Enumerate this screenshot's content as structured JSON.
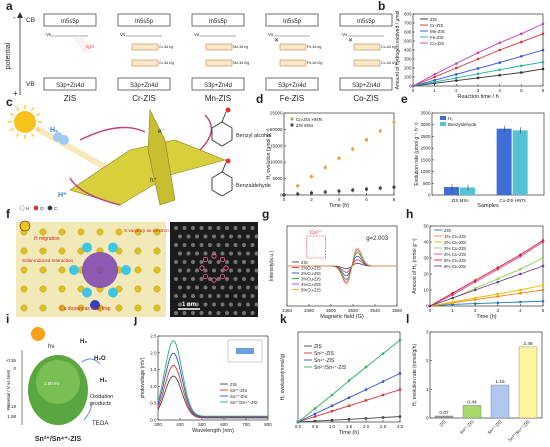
{
  "panel_letters": [
    "a",
    "b",
    "c",
    "d",
    "e",
    "f",
    "g",
    "h",
    "i",
    "j",
    "k",
    "l"
  ],
  "panel_a": {
    "potential_axis": "potential",
    "minus": "-",
    "plus": "+",
    "cb": "CB",
    "vb": "VB",
    "band_top": "In5s5p",
    "band_bottom": "S3p+Zn4d",
    "vs": "Vs",
    "light": "light",
    "samples": [
      "ZIS",
      "Cr-ZIS",
      "Mn-ZIS",
      "Fe-ZIS",
      "Co-ZIS"
    ],
    "dopant_levels": [
      {
        "eg": "",
        "t2g": ""
      },
      {
        "eg": "Cr-3d eg",
        "t2g": "Cr-3d t2g"
      },
      {
        "eg": "Mn-3d eg",
        "t2g": "Mn-3d t2g"
      },
      {
        "eg": "Fe-3d eg",
        "t2g": "Fe-3d t2g"
      },
      {
        "eg": "Co-3d eg",
        "t2g": "Co-3d t2g"
      }
    ]
  },
  "panel_c": {
    "h2": "H₂",
    "hplus": "H⁺",
    "electron": "e⁻",
    "hole": "h⁺",
    "benzyl_alcohol": "Benzyl alcohol",
    "benzaldehyde": "Benzaldehyde",
    "legend": [
      "H",
      "O",
      "C"
    ]
  },
  "panel_f": {
    "annotations": [
      "H migration",
      "S vacancy as electron trap",
      "Solar-induced Interaction",
      "Cu dopant as hole trap"
    ],
    "scale": "1 nm"
  },
  "panel_i": {
    "yaxis": "Potential / V vs NHE",
    "title": "Sn²⁺/Sn⁴⁺-ZIS",
    "h2": "H₂",
    "h2o": "H₂O",
    "h2o2": "H₂O",
    "h2_2": "H₂",
    "oxidation": "Oxidation products",
    "teoa": "TEOA",
    "hv": "hν",
    "levels": [
      "-0.36",
      "0",
      "2.19",
      "1.98"
    ],
    "ev": "1.90 eV"
  },
  "chart_data": [
    {
      "panel": "b",
      "type": "line",
      "xlabel": "Reaction time / h",
      "ylabel": "Amount of hydrogen evolved / μmol",
      "x": [
        0,
        1,
        2,
        3,
        4,
        5,
        6
      ],
      "xlim": [
        0,
        6
      ],
      "ylim": [
        0,
        800
      ],
      "yticks": [
        0,
        100,
        200,
        300,
        400,
        500,
        600,
        700,
        800
      ],
      "series": [
        {
          "name": "ZIS",
          "color": "#333333",
          "values": [
            0,
            30,
            60,
            90,
            120,
            150,
            190
          ]
        },
        {
          "name": "Cr-ZIS",
          "color": "#e03030",
          "values": [
            0,
            100,
            200,
            300,
            400,
            490,
            580
          ]
        },
        {
          "name": "Mn-ZIS",
          "color": "#3050e0",
          "values": [
            0,
            65,
            130,
            195,
            260,
            330,
            400
          ]
        },
        {
          "name": "Fe-ZIS",
          "color": "#20b0a0",
          "values": [
            0,
            45,
            90,
            135,
            180,
            225,
            265
          ]
        },
        {
          "name": "Co-ZIS",
          "color": "#c040c0",
          "values": [
            0,
            130,
            250,
            370,
            480,
            580,
            690
          ]
        }
      ]
    },
    {
      "panel": "d",
      "type": "scatter",
      "xlabel": "Time (h)",
      "ylabel": "H₂ evolution (μmol g⁻¹)",
      "xlim": [
        0,
        8
      ],
      "ylim": [
        0,
        25000
      ],
      "xticks": [
        0,
        2,
        4,
        6,
        8
      ],
      "yticks": [
        0,
        5000,
        10000,
        15000,
        20000,
        25000
      ],
      "series": [
        {
          "name": "Co-ZIS HNTs",
          "color": "#e6a23c",
          "x": [
            0,
            1,
            2,
            3,
            4,
            5,
            6,
            7,
            8
          ],
          "values": [
            0,
            2800,
            5600,
            8400,
            11200,
            14000,
            16800,
            19500,
            22200
          ]
        },
        {
          "name": "ZIS MSs",
          "color": "#444444",
          "x": [
            0,
            1,
            2,
            3,
            4,
            5,
            6,
            7,
            8
          ],
          "values": [
            0,
            300,
            600,
            900,
            1200,
            1500,
            1800,
            2100,
            2400
          ]
        }
      ]
    },
    {
      "panel": "e",
      "type": "bar",
      "xlabel": "Samples",
      "ylabel": "Evolution rate (μmol g⁻¹ h⁻¹)",
      "categories": [
        "ZIS MSs",
        "Co-ZIS HNTs"
      ],
      "ylim": [
        0,
        3500
      ],
      "yticks": [
        0,
        500,
        1000,
        1500,
        2000,
        2500,
        3000,
        3500
      ],
      "series": [
        {
          "name": "H₂",
          "color": "#3f6fd6",
          "values": [
            340,
            2830
          ]
        },
        {
          "name": "Benzyldehyde",
          "color": "#54c3d6",
          "values": [
            320,
            2760
          ]
        }
      ]
    },
    {
      "panel": "g",
      "type": "line",
      "xlabel": "Magnetic field (G)",
      "ylabel": "Intensity(a.u.)",
      "xlim": [
        3460,
        3560
      ],
      "xticks": [
        3460,
        3480,
        3500,
        3520,
        3540,
        3560
      ],
      "annotation_cu": "Cu²⁺",
      "annotation_g": "g=2.003",
      "series": [
        {
          "name": "ZIS",
          "color": "#444444",
          "amp": 0.15
        },
        {
          "name": "1%Cu-ZIS",
          "color": "#e03030",
          "amp": 0.35
        },
        {
          "name": "2%Cu-ZIS",
          "color": "#3050e0",
          "amp": 0.55
        },
        {
          "name": "3%Cu-ZIS",
          "color": "#30a030",
          "amp": 0.75
        },
        {
          "name": "4%Cu-ZIS",
          "color": "#c040c0",
          "amp": 0.9
        },
        {
          "name": "5%Cu-ZIS",
          "color": "#e6a23c",
          "amp": 1.0
        }
      ]
    },
    {
      "panel": "h",
      "type": "line",
      "xlabel": "Time (h)",
      "ylabel": "Amount of H₂ (mmol g⁻¹)",
      "x": [
        0,
        1,
        2,
        3,
        4,
        5
      ],
      "xlim": [
        0,
        5
      ],
      "ylim": [
        0,
        50
      ],
      "yticks": [
        0,
        10,
        20,
        30,
        40,
        50
      ],
      "series": [
        {
          "name": "ZIS",
          "color": "#1f77b4",
          "values": [
            0,
            1,
            1.5,
            2,
            2.5,
            3
          ]
        },
        {
          "name": "1% Cu-ZIS",
          "color": "#ff7f0e",
          "values": [
            0,
            2,
            4,
            6,
            8,
            10
          ]
        },
        {
          "name": "2% Cu-ZIS",
          "color": "#e6c000",
          "values": [
            0,
            2.5,
            5,
            7.5,
            10,
            13
          ]
        },
        {
          "name": "3% Cu-ZIS",
          "color": "#8fd14f",
          "values": [
            0,
            5,
            11,
            17,
            23,
            30
          ]
        },
        {
          "name": "4% Cu-ZIS",
          "color": "#e040a0",
          "values": [
            0,
            7,
            15,
            23,
            31,
            40
          ]
        },
        {
          "name": "5% Cu-ZIS",
          "color": "#d62728",
          "values": [
            0,
            8,
            16,
            24,
            32,
            41
          ]
        },
        {
          "name": "6% Cu-ZIS",
          "color": "#6a3d9a",
          "values": [
            0,
            5,
            10,
            15,
            20,
            25
          ]
        }
      ]
    },
    {
      "panel": "j",
      "type": "line",
      "xlabel": "Wavelength (nm)",
      "ylabel": "photovoltage (mV)",
      "xlim": [
        300,
        800
      ],
      "ylim": [
        0,
        2.5
      ],
      "xticks": [
        300,
        400,
        500,
        600,
        700,
        800
      ],
      "yticks": [
        0,
        0.5,
        1.0,
        1.5,
        2.0,
        2.5
      ],
      "series": [
        {
          "name": "ZIS",
          "color": "#444444",
          "peak": 1.25
        },
        {
          "name": "Sn²⁺-ZIS",
          "color": "#e03030",
          "peak": 1.55
        },
        {
          "name": "Sn⁴⁺-ZIS",
          "color": "#3050e0",
          "peak": 1.9
        },
        {
          "name": "Sn²⁺/Sn⁴⁺-ZIS",
          "color": "#30b060",
          "peak": 2.25
        }
      ]
    },
    {
      "panel": "k",
      "type": "line",
      "xlabel": "Time (h)",
      "ylabel": "H₂ evolution(mmol/g)",
      "x": [
        0,
        0.5,
        1,
        1.5,
        2,
        2.5,
        3
      ],
      "xlim": [
        0,
        3
      ],
      "ylim": [
        0,
        10
      ],
      "xticks": [
        0,
        0.5,
        1.0,
        1.5,
        2.0,
        2.5,
        3.0
      ],
      "series": [
        {
          "name": "ZIS",
          "color": "#444444",
          "values": [
            0,
            0.1,
            0.2,
            0.3,
            0.4,
            0.5,
            0.6
          ]
        },
        {
          "name": "Sn²⁺-ZIS",
          "color": "#e03030",
          "values": [
            0,
            0.6,
            1.2,
            1.8,
            2.4,
            3.0,
            3.6
          ]
        },
        {
          "name": "Sn⁴⁺-ZIS",
          "color": "#3050e0",
          "values": [
            0,
            0.9,
            1.8,
            2.7,
            3.6,
            4.5,
            5.4
          ]
        },
        {
          "name": "Sn²⁺/Sn⁴⁺-ZIS",
          "color": "#30b060",
          "values": [
            0,
            1.5,
            3.0,
            4.6,
            6.1,
            7.6,
            9.1
          ]
        }
      ]
    },
    {
      "panel": "l",
      "type": "bar",
      "ylabel": "H₂ evolution rate (mmol/g/h)",
      "ylim": [
        0,
        3
      ],
      "yticks": [
        0,
        1,
        2,
        3
      ],
      "categories": [
        "ZIS",
        "Sn²⁺-ZIS",
        "Sn⁴⁺-ZIS",
        "Sn²⁺/Sn⁴⁺-ZIS"
      ],
      "colors": [
        "#999999",
        "#a6d96a",
        "#b0c8f0",
        "#fff59d"
      ],
      "values": [
        0.07,
        0.44,
        1.15,
        2.48
      ],
      "value_labels": [
        "0.07",
        "0.44",
        "1.15",
        "2.48"
      ]
    }
  ]
}
